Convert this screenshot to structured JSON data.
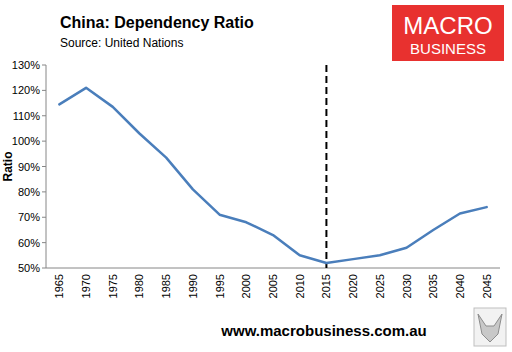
{
  "chart_data": {
    "type": "line",
    "title": "China: Dependency Ratio",
    "subtitle": "Source: United Nations",
    "y_label": "Ratio",
    "logo": [
      "MACRO",
      "BUSINESS"
    ],
    "footer": "www.macrobusiness.com.au",
    "categories": [
      "1965",
      "1970",
      "1975",
      "1980",
      "1985",
      "1990",
      "1995",
      "2000",
      "2005",
      "2010",
      "2015",
      "2020",
      "2025",
      "2030",
      "2035",
      "2040",
      "2045"
    ],
    "values": [
      114.5,
      121,
      113.5,
      103,
      93.5,
      81,
      71,
      68,
      63,
      55,
      52,
      53.5,
      55,
      58,
      65,
      71.5,
      74
    ],
    "color": "#4a7ebb",
    "ylim": [
      50,
      130
    ],
    "yticks": [
      {
        "value": 50,
        "label": "50%"
      },
      {
        "value": 60,
        "label": "60%"
      },
      {
        "value": 70,
        "label": "70%"
      },
      {
        "value": 80,
        "label": "80%"
      },
      {
        "value": 90,
        "label": "90%"
      },
      {
        "value": 100,
        "label": "100%"
      },
      {
        "value": 110,
        "label": "110%"
      },
      {
        "value": 120,
        "label": "120%"
      },
      {
        "value": 130,
        "label": "130%"
      }
    ],
    "grid": false,
    "vline_category": "2015",
    "line_style": "solid"
  }
}
